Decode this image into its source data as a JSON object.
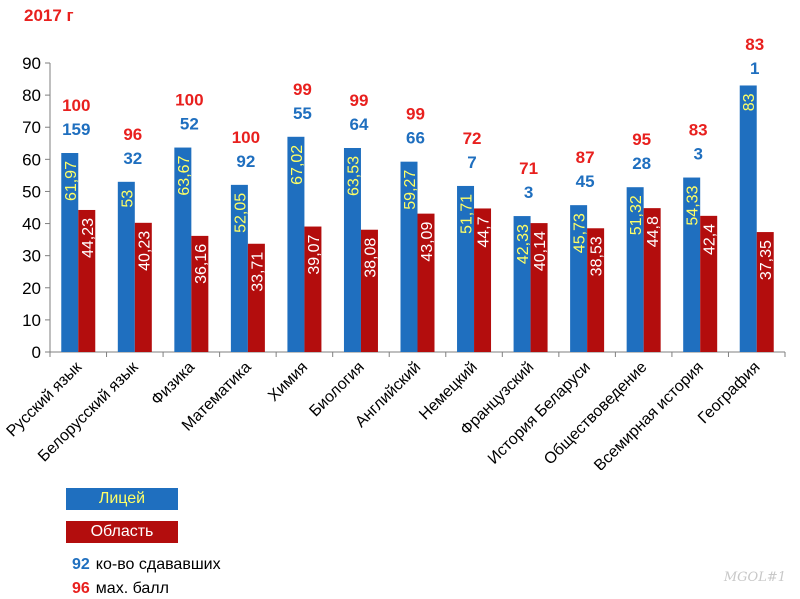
{
  "title": "2017 г",
  "legend": {
    "series1": "Лицей",
    "series2": "Область",
    "count_sample": "92",
    "count_label": "ко-во сдававших",
    "max_sample": "96",
    "max_label": "мах. балл"
  },
  "watermark": "MGOL#1",
  "chart_data": {
    "type": "bar",
    "ylim": [
      0,
      90
    ],
    "yticks": [
      0,
      10,
      20,
      30,
      40,
      50,
      60,
      70,
      80,
      90
    ],
    "grid": false,
    "colors": {
      "lyceum": "#1f6fbf",
      "region": "#b30d0d",
      "count": "#1f6fbf",
      "max": "#e8201e",
      "value_label_lyceum": "#ffff66",
      "value_label_region": "#ffffff"
    },
    "categories": [
      "Русский язык",
      "Белорусский язык",
      "Физика",
      "Математика",
      "Химия",
      "Биология",
      "Английский",
      "Немецкий",
      "Французский",
      "История Беларуси",
      "Обществоведение",
      "Всемирная история",
      "География"
    ],
    "series": [
      {
        "name": "Лицей",
        "values": [
          61.97,
          53,
          63.67,
          52.05,
          67.02,
          63.53,
          59.27,
          51.71,
          42.33,
          45.73,
          51.32,
          54.33,
          83
        ],
        "labels": [
          "61,97",
          "53",
          "63,67",
          "52,05",
          "67,02",
          "63,53",
          "59,27",
          "51,71",
          "42,33",
          "45,73",
          "51,32",
          "54,33",
          "83"
        ]
      },
      {
        "name": "Область",
        "values": [
          44.23,
          40.23,
          36.16,
          33.71,
          39.07,
          38.08,
          43.09,
          44.7,
          40.14,
          38.53,
          44.8,
          42.4,
          37.35
        ],
        "labels": [
          "44,23",
          "40,23",
          "36,16",
          "33,71",
          "39,07",
          "38,08",
          "43,09",
          "44,7",
          "40,14",
          "38,53",
          "44,8",
          "42,4",
          "37,35"
        ]
      }
    ],
    "participants": [
      "159",
      "32",
      "52",
      "92",
      "55",
      "64",
      "66",
      "7",
      "3",
      "45",
      "28",
      "3",
      "1"
    ],
    "max_scores": [
      "100",
      "96",
      "100",
      "100",
      "99",
      "99",
      "99",
      "72",
      "71",
      "87",
      "95",
      "83",
      "83"
    ]
  }
}
